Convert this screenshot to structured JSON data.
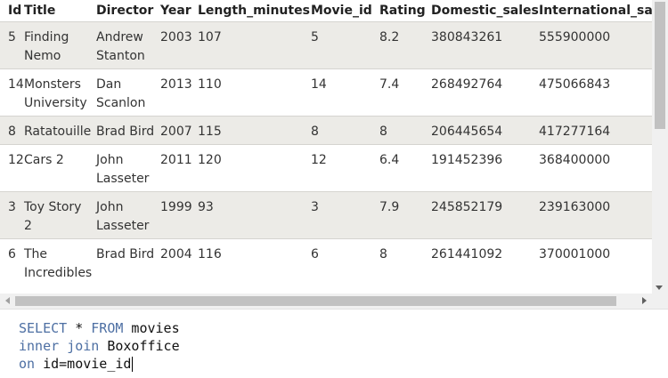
{
  "results": {
    "columns": [
      "Id",
      "Title",
      "Director",
      "Year",
      "Length_minutes",
      "Movie_id",
      "Rating",
      "Domestic_sales",
      "International_sa"
    ],
    "rows": [
      {
        "id": "5",
        "title": [
          "Finding",
          "Nemo"
        ],
        "director": [
          "Andrew",
          "Stanton"
        ],
        "year": "2003",
        "length": "107",
        "movie_id": "5",
        "rating": "8.2",
        "domestic": "380843261",
        "international": "555900000"
      },
      {
        "id": "14",
        "title": [
          "Monsters",
          "University"
        ],
        "director": [
          "Dan",
          "Scanlon"
        ],
        "year": "2013",
        "length": "110",
        "movie_id": "14",
        "rating": "7.4",
        "domestic": "268492764",
        "international": "475066843"
      },
      {
        "id": "8",
        "title": [
          "Ratatouille"
        ],
        "director": [
          "Brad Bird"
        ],
        "year": "2007",
        "length": "115",
        "movie_id": "8",
        "rating": "8",
        "domestic": "206445654",
        "international": "417277164"
      },
      {
        "id": "12",
        "title": [
          "Cars 2"
        ],
        "director": [
          "John",
          "Lasseter"
        ],
        "year": "2011",
        "length": "120",
        "movie_id": "12",
        "rating": "6.4",
        "domestic": "191452396",
        "international": "368400000"
      },
      {
        "id": "3",
        "title": [
          "Toy Story",
          "2"
        ],
        "director": [
          "John",
          "Lasseter"
        ],
        "year": "1999",
        "length": "93",
        "movie_id": "3",
        "rating": "7.9",
        "domestic": "245852179",
        "international": "239163000"
      },
      {
        "id": "6",
        "title": [
          "The",
          "Incredibles"
        ],
        "director": [
          "Brad Bird"
        ],
        "year": "2004",
        "length": "116",
        "movie_id": "6",
        "rating": "8",
        "domestic": "261441092",
        "international": "370001000"
      }
    ]
  },
  "editor": {
    "line1": {
      "kw1": "SELECT",
      "op": " * ",
      "kw2": "FROM",
      "rest": " movies"
    },
    "line2": {
      "kw1": "inner",
      "sp": " ",
      "kw2": "join",
      "rest": " Boxoffice"
    },
    "line3": {
      "kw1": "on",
      "rest": " id=movie_id"
    }
  },
  "colors": {
    "keyword": "#4d6fa3",
    "row_alt": "#ecebe7",
    "scrollbar_thumb": "#c1c1c1"
  }
}
